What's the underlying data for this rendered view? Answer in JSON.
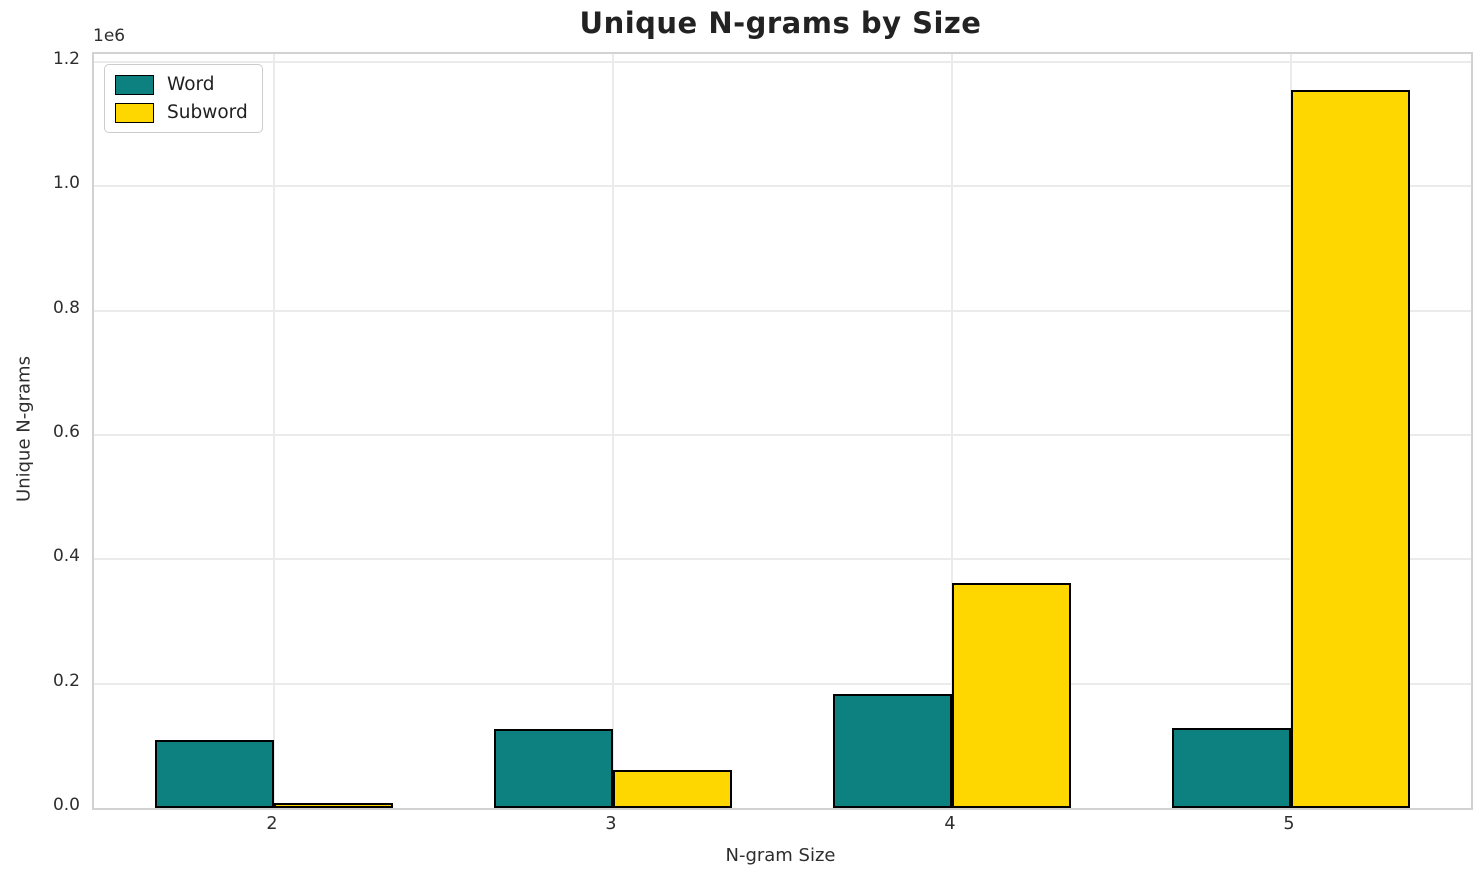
{
  "title": "Unique N-grams by Size",
  "chart_data": {
    "type": "bar",
    "categories": [
      "2",
      "3",
      "4",
      "5"
    ],
    "series": [
      {
        "name": "Word",
        "color": "#0d8080",
        "values": [
          110000,
          127000,
          184000,
          129000
        ]
      },
      {
        "name": "Subword",
        "color": "#ffd700",
        "values": [
          8000,
          61000,
          362000,
          1155000
        ]
      }
    ],
    "title": "Unique N-grams by Size",
    "xlabel": "N-gram Size",
    "ylabel": "Unique N-grams",
    "offset_text": "1e6",
    "ylim": [
      0,
      1213000
    ],
    "xlim": [
      -0.531,
      3.531
    ],
    "yticks": [
      0,
      200000,
      400000,
      600000,
      800000,
      1000000,
      1200000
    ],
    "ytick_labels": [
      "0.0",
      "0.2",
      "0.4",
      "0.6",
      "0.8",
      "1.0",
      "1.2"
    ],
    "bar_width": 0.35,
    "grid": true,
    "legend_position": "upper-left",
    "legend_entries": [
      "Word",
      "Subword"
    ]
  },
  "styles": {
    "background": "#ffffff",
    "grid_color": "#ebebeb",
    "spine_color": "#d2d2d2",
    "bar_edge_color": "#000000",
    "text_color": "#2e2e2e",
    "title_color": "#222222"
  }
}
